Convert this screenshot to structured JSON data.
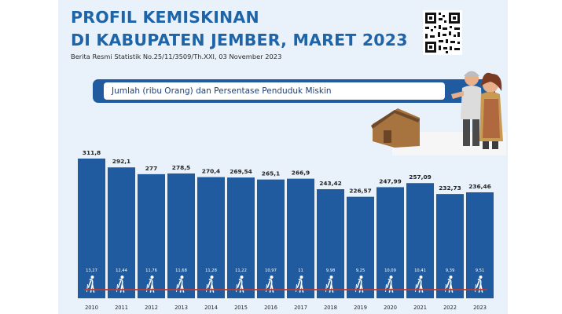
{
  "header": {
    "title_line1": "PROFIL KEMISKINAN",
    "title_line2": "DI KABUPATEN JEMBER, MARET 2023",
    "source": "Berita Resmi Statistik No.25/11/3509/Th.XXI, 03 November 2023"
  },
  "banner": {
    "label": "Jumlah (ribu Orang) dan Persentase Penduduk Miskin"
  },
  "icons": {
    "qr": "qr-code-icon",
    "people": "elderly-couple-icon",
    "house": "house-icon",
    "person": "walking-person-icon"
  },
  "colors": {
    "bar": "#1f5b9e",
    "title": "#1e64a8",
    "panel_background": "#e9f2fb",
    "percentage_line": "#c0392b"
  },
  "chart_data": {
    "type": "bar",
    "categories": [
      "2010",
      "2011",
      "2012",
      "2013",
      "2014",
      "2015",
      "2016",
      "2017",
      "2018",
      "2019",
      "2020",
      "2021",
      "2022",
      "2023"
    ],
    "series": [
      {
        "name": "Jumlah (ribu Orang)",
        "values": [
          311.8,
          292.1,
          277,
          278.5,
          270.4,
          269.54,
          265.1,
          266.9,
          243.42,
          226.57,
          247.99,
          257.09,
          232.73,
          236.46
        ],
        "labels": [
          "311,8",
          "292,1",
          "277",
          "278,5",
          "270,4",
          "269,54",
          "265,1",
          "266,9",
          "243,42",
          "226,57",
          "247,99",
          "257,09",
          "232,73",
          "236,46"
        ]
      },
      {
        "name": "Persentase Penduduk Miskin",
        "values": [
          13.27,
          12.44,
          11.76,
          11.68,
          11.28,
          11.22,
          10.97,
          11,
          9.98,
          9.25,
          10.09,
          10.41,
          9.39,
          9.51
        ],
        "labels": [
          "13,27",
          "12,44",
          "11,76",
          "11,68",
          "11,28",
          "11,22",
          "10,97",
          "11",
          "9,98",
          "9,25",
          "10,09",
          "10,41",
          "9,39",
          "9,51"
        ]
      }
    ],
    "ylim": [
      0,
      311.8
    ]
  }
}
